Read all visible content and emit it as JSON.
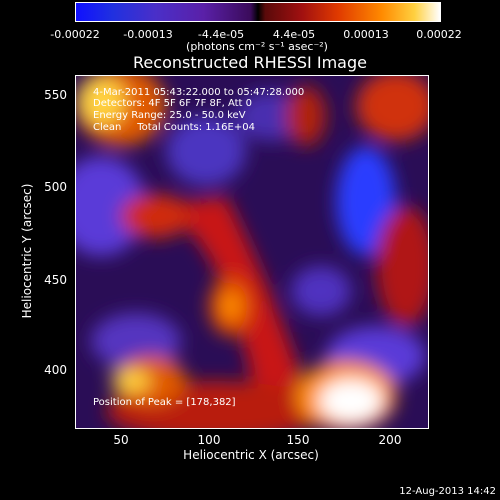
{
  "colorbar": {
    "ticks": [
      "-0.00022",
      "-0.00013",
      "-4.4e-05",
      "4.4e-05",
      "0.00013",
      "0.00022"
    ],
    "units": "(photons cm⁻² s⁻¹ asec⁻²)"
  },
  "title": "Reconstructed RHESSI Image",
  "annotations": {
    "time": "4-Mar-2011 05:43:22.000 to 05:47:28.000",
    "detectors": "Detectors: 4F 5F 6F 7F 8F, Att 0",
    "energy": "Energy Range: 25.0 - 50.0 keV",
    "clean": "Clean     Total Counts: 1.16E+04",
    "peak": "Position of Peak = [178,382]"
  },
  "axes": {
    "xlabel": "Heliocentric X (arcsec)",
    "ylabel": "Heliocentric Y (arcsec)",
    "xticks": [
      "50",
      "100",
      "150",
      "200"
    ],
    "yticks": [
      "550",
      "500",
      "450",
      "400"
    ],
    "xrange": [
      25,
      215
    ],
    "yrange": [
      370,
      565
    ]
  },
  "footer": {
    "timestamp": "12-Aug-2013 14:42"
  }
}
